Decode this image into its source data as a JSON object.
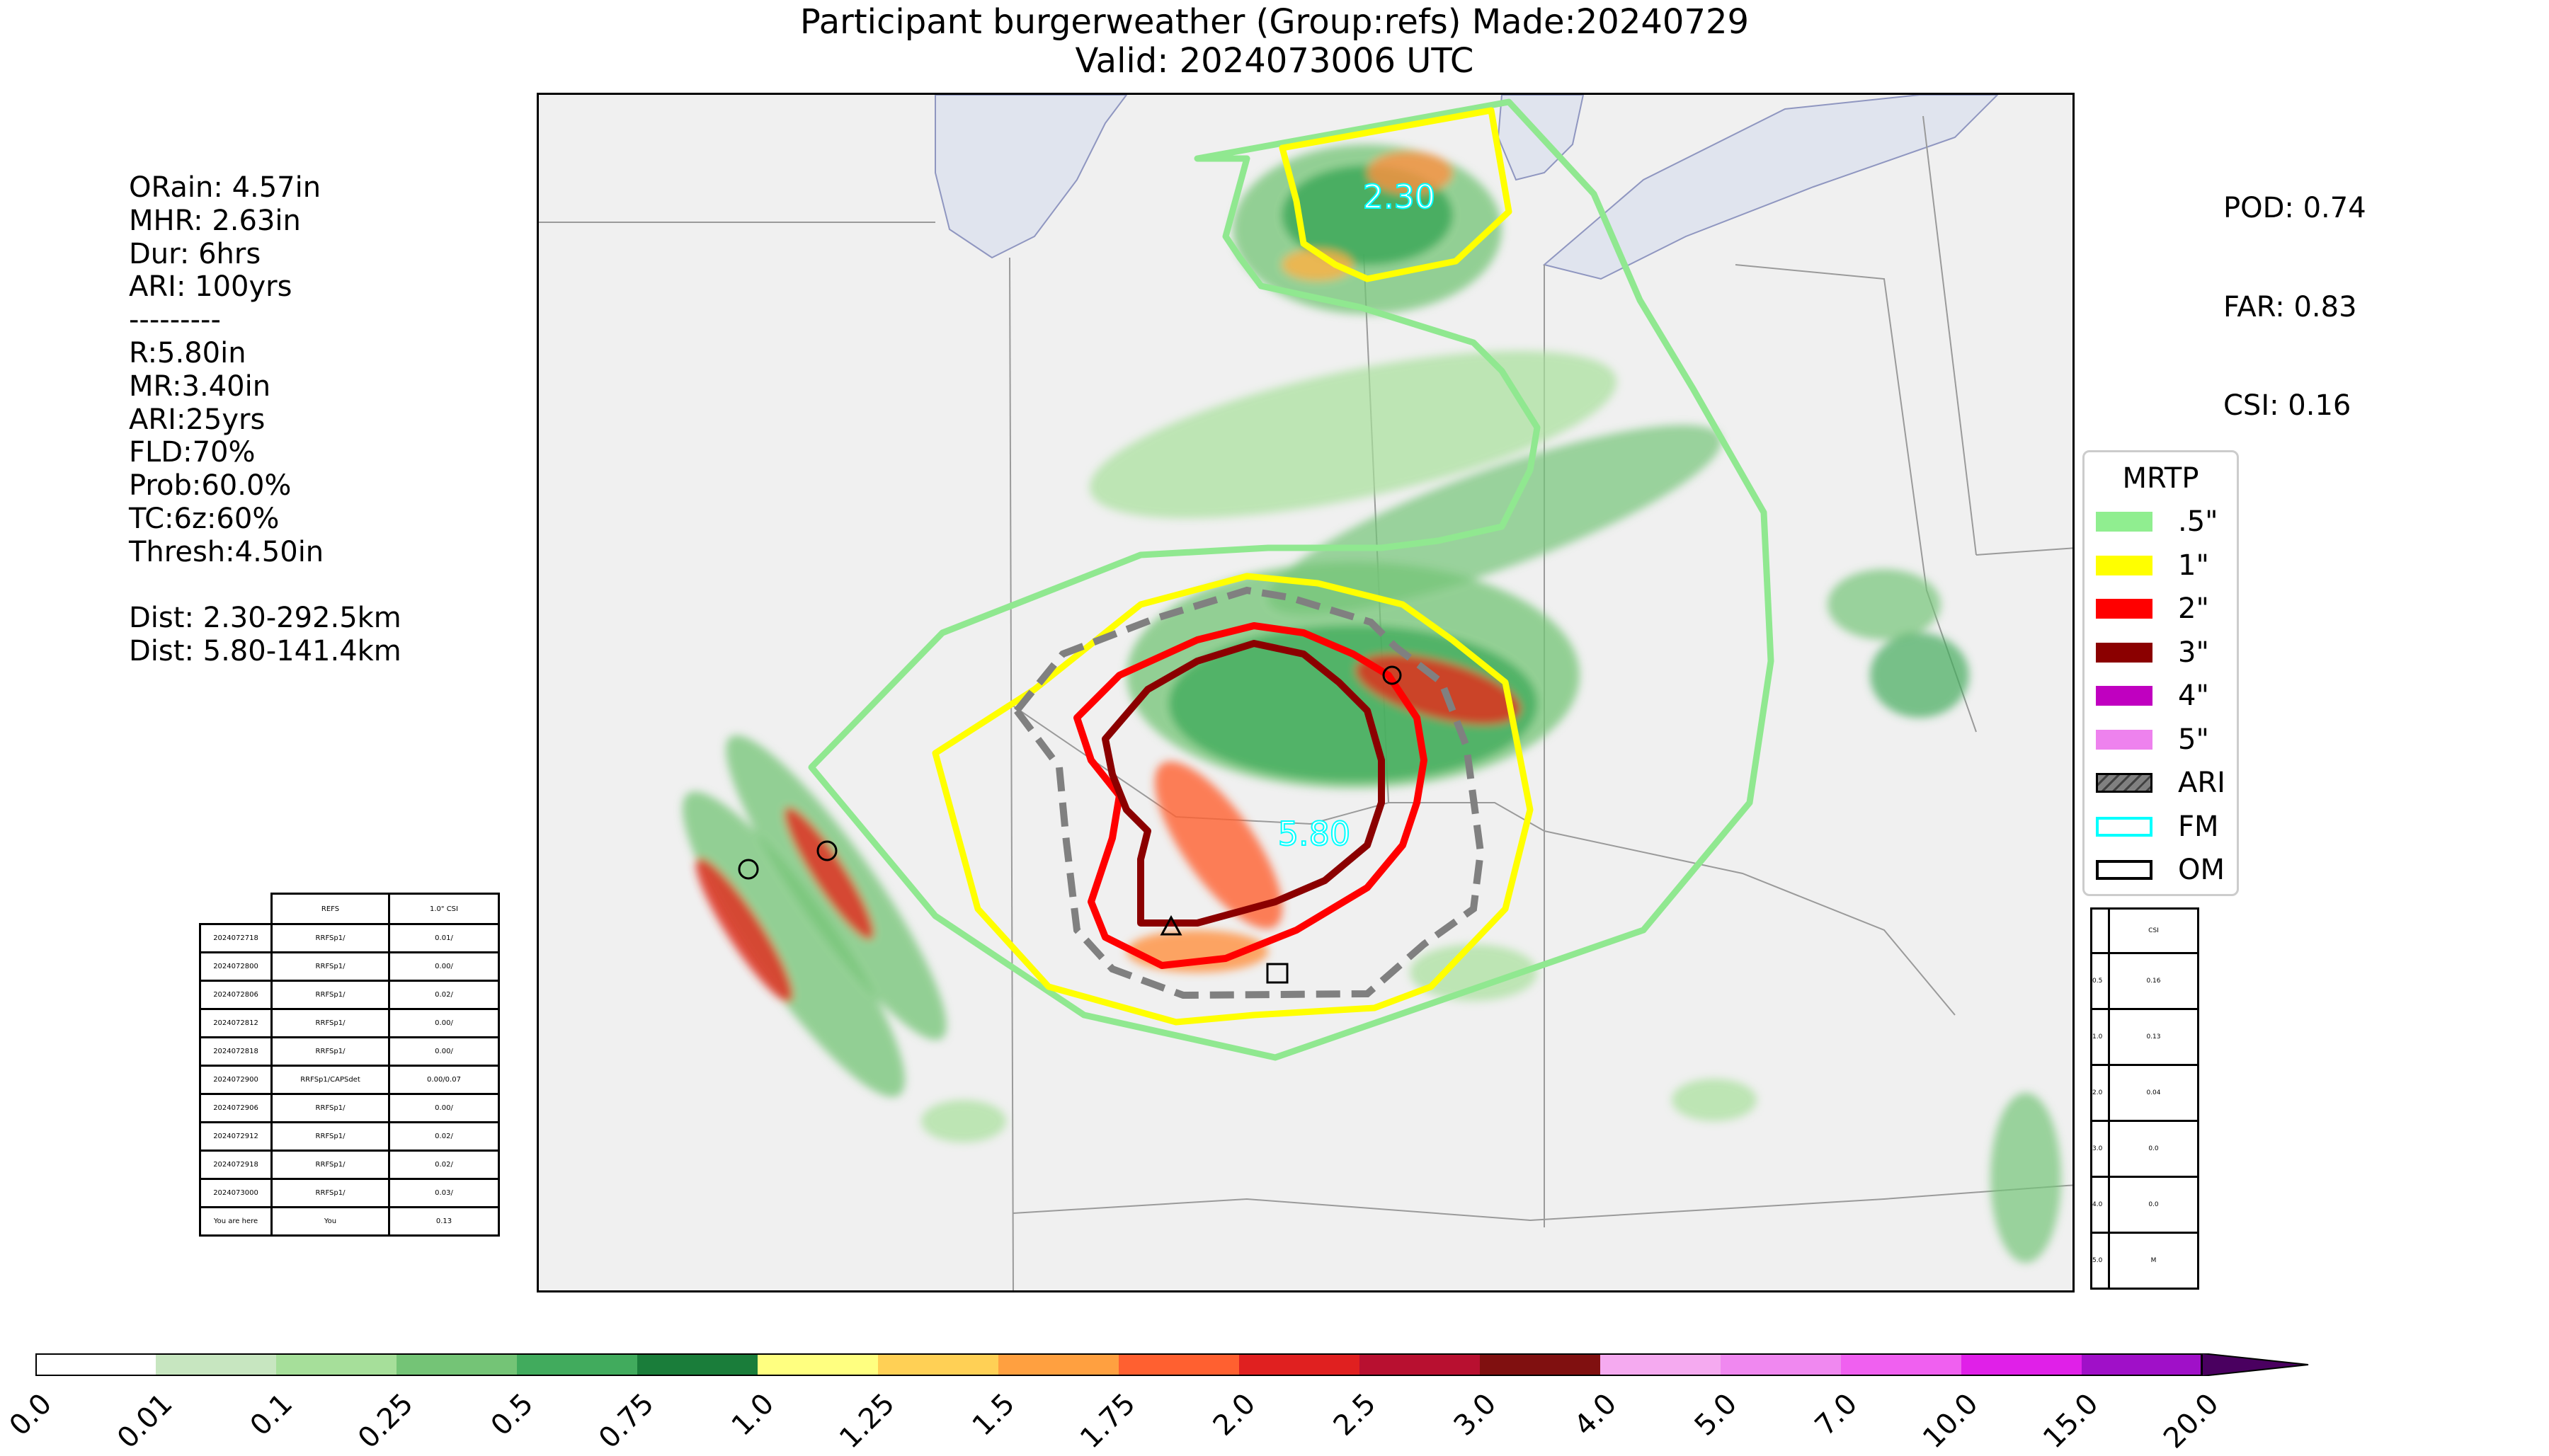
{
  "title": {
    "line1": "Participant burgerweather (Group:refs) Made:20240729",
    "line2": "Valid: 2024073006 UTC"
  },
  "stats": {
    "lines": [
      "ORain: 4.57in",
      "MHR: 2.63in",
      "Dur: 6hrs",
      "ARI: 100yrs",
      "---------",
      "R:5.80in",
      "MR:3.40in",
      "ARI:25yrs",
      "FLD:70%",
      "Prob:60.0%",
      "TC:6z:60%",
      "Thresh:4.50in",
      "",
      "Dist: 2.30-292.5km",
      "Dist: 5.80-141.4km"
    ]
  },
  "scores": {
    "pod": "POD: 0.74",
    "far": "FAR: 0.83",
    "csi": "CSI: 0.16"
  },
  "map": {
    "labels": {
      "max_north": "2.30",
      "max_south": "5.80"
    },
    "colors": {
      "c05": "#90e890",
      "c1": "#ffff00",
      "c2": "#ff0000",
      "c3": "#8b0000",
      "ari": "#808080",
      "fm": "#00ffff",
      "water": "#e0e4ee"
    }
  },
  "legend": {
    "title": "MRTP",
    "items": [
      {
        "label": ".5\"",
        "color": "#90ee90",
        "style": "fill"
      },
      {
        "label": "1\"",
        "color": "#ffff00",
        "style": "fill"
      },
      {
        "label": "2\"",
        "color": "#ff0000",
        "style": "fill"
      },
      {
        "label": "3\"",
        "color": "#8b0000",
        "style": "fill"
      },
      {
        "label": "4\"",
        "color": "#c000c0",
        "style": "fill"
      },
      {
        "label": "5\"",
        "color": "#ee82ee",
        "style": "fill"
      },
      {
        "label": "ARI",
        "color": "#808080",
        "style": "hatch"
      },
      {
        "label": "FM",
        "color": "#00ffff",
        "style": "outline"
      },
      {
        "label": "OM",
        "color": "#000000",
        "style": "outline"
      }
    ]
  },
  "csi_table": {
    "headers": [
      "",
      "REFS",
      "1.0\" CSI"
    ],
    "rows": [
      [
        "2024072718",
        "RRFSp1/",
        "0.01/"
      ],
      [
        "2024072800",
        "RRFSp1/",
        "0.00/"
      ],
      [
        "2024072806",
        "RRFSp1/",
        "0.02/"
      ],
      [
        "2024072812",
        "RRFSp1/",
        "0.00/"
      ],
      [
        "2024072818",
        "RRFSp1/",
        "0.00/"
      ],
      [
        "2024072900",
        "RRFSp1/CAPSdet",
        "0.00/0.07"
      ],
      [
        "2024072906",
        "RRFSp1/",
        "0.00/"
      ],
      [
        "2024072912",
        "RRFSp1/",
        "0.02/"
      ],
      [
        "2024072918",
        "RRFSp1/",
        "0.02/"
      ],
      [
        "2024073000",
        "RRFSp1/",
        "0.03/"
      ],
      [
        "You are here",
        "You",
        "0.13"
      ]
    ]
  },
  "side_table": {
    "header": "CSI",
    "rows": [
      [
        "0.5",
        "0.16"
      ],
      [
        "1.0",
        "0.13"
      ],
      [
        "2.0",
        "0.04"
      ],
      [
        "3.0",
        "0.0"
      ],
      [
        "4.0",
        "0.0"
      ],
      [
        "5.0",
        "M"
      ]
    ]
  },
  "colorbar": {
    "ticks": [
      "0.0",
      "0.01",
      "0.1",
      "0.25",
      "0.5",
      "0.75",
      "1.0",
      "1.25",
      "1.5",
      "1.75",
      "2.0",
      "2.5",
      "3.0",
      "4.0",
      "5.0",
      "7.0",
      "10.0",
      "15.0",
      "20.0"
    ],
    "colors": [
      "#ffffff",
      "#c7e6c0",
      "#a6df9a",
      "#74c476",
      "#41ab5d",
      "#1a7d3a",
      "#ffff80",
      "#ffd055",
      "#ffa040",
      "#ff6030",
      "#e02020",
      "#b81030",
      "#801010",
      "#f5aaf0",
      "#f088f0",
      "#f060f0",
      "#e020e8",
      "#a010c8"
    ],
    "extend_color": "#4a0060"
  }
}
